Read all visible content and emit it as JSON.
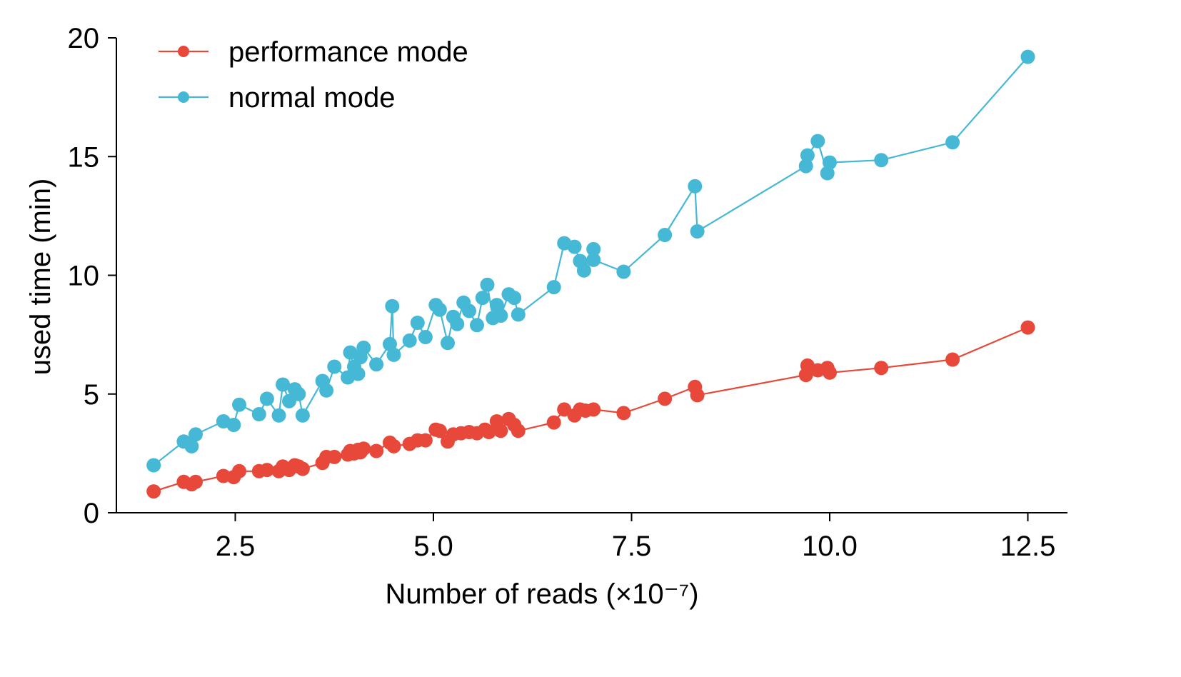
{
  "chart_data": {
    "type": "line",
    "xlabel": "Number of reads (×10⁻⁷)",
    "ylabel": "used time (min)",
    "xlim": [
      1.0,
      13.0
    ],
    "ylim": [
      0,
      20
    ],
    "xticks": [
      "2.5",
      "5.0",
      "7.5",
      "10.0",
      "12.5"
    ],
    "xtick_values": [
      2.5,
      5.0,
      7.5,
      10.0,
      12.5
    ],
    "yticks": [
      "0",
      "5",
      "10",
      "15",
      "20"
    ],
    "ytick_values": [
      0,
      5,
      10,
      15,
      20
    ],
    "grid": false,
    "legend_position": "top-left",
    "series": [
      {
        "name": "performance mode",
        "color": "#e8483a",
        "points": [
          [
            1.47,
            0.9
          ],
          [
            1.85,
            1.3
          ],
          [
            1.95,
            1.2
          ],
          [
            2.0,
            1.3
          ],
          [
            2.35,
            1.55
          ],
          [
            2.48,
            1.5
          ],
          [
            2.55,
            1.75
          ],
          [
            2.8,
            1.75
          ],
          [
            2.9,
            1.8
          ],
          [
            3.05,
            1.75
          ],
          [
            3.1,
            1.95
          ],
          [
            3.18,
            1.8
          ],
          [
            3.25,
            2.0
          ],
          [
            3.3,
            1.95
          ],
          [
            3.35,
            1.85
          ],
          [
            3.6,
            2.1
          ],
          [
            3.65,
            2.35
          ],
          [
            3.75,
            2.35
          ],
          [
            3.92,
            2.45
          ],
          [
            3.95,
            2.6
          ],
          [
            4.0,
            2.5
          ],
          [
            4.05,
            2.65
          ],
          [
            4.08,
            2.55
          ],
          [
            4.12,
            2.7
          ],
          [
            4.28,
            2.6
          ],
          [
            4.45,
            2.95
          ],
          [
            4.5,
            2.8
          ],
          [
            4.7,
            2.9
          ],
          [
            4.8,
            3.05
          ],
          [
            4.9,
            3.05
          ],
          [
            5.03,
            3.5
          ],
          [
            5.08,
            3.45
          ],
          [
            5.18,
            3.0
          ],
          [
            5.25,
            3.3
          ],
          [
            5.35,
            3.35
          ],
          [
            5.45,
            3.4
          ],
          [
            5.55,
            3.35
          ],
          [
            5.65,
            3.5
          ],
          [
            5.7,
            3.4
          ],
          [
            5.8,
            3.85
          ],
          [
            5.85,
            3.45
          ],
          [
            5.95,
            3.95
          ],
          [
            6.02,
            3.7
          ],
          [
            6.07,
            3.45
          ],
          [
            6.52,
            3.8
          ],
          [
            6.65,
            4.35
          ],
          [
            6.78,
            4.1
          ],
          [
            6.85,
            4.35
          ],
          [
            6.92,
            4.3
          ],
          [
            7.02,
            4.35
          ],
          [
            7.4,
            4.2
          ],
          [
            7.92,
            4.8
          ],
          [
            8.3,
            5.3
          ],
          [
            8.33,
            4.95
          ],
          [
            9.7,
            5.8
          ],
          [
            9.72,
            6.2
          ],
          [
            9.85,
            6.0
          ],
          [
            9.97,
            6.1
          ],
          [
            10.0,
            5.9
          ],
          [
            10.65,
            6.1
          ],
          [
            11.55,
            6.45
          ],
          [
            12.5,
            7.8
          ]
        ]
      },
      {
        "name": "normal mode",
        "color": "#45b8d6",
        "points": [
          [
            1.47,
            2.0
          ],
          [
            1.85,
            3.0
          ],
          [
            1.95,
            2.8
          ],
          [
            2.0,
            3.3
          ],
          [
            2.35,
            3.85
          ],
          [
            2.48,
            3.7
          ],
          [
            2.55,
            4.55
          ],
          [
            2.8,
            4.15
          ],
          [
            2.9,
            4.8
          ],
          [
            3.05,
            4.1
          ],
          [
            3.1,
            5.4
          ],
          [
            3.18,
            4.7
          ],
          [
            3.25,
            5.2
          ],
          [
            3.3,
            5.0
          ],
          [
            3.35,
            4.1
          ],
          [
            3.6,
            5.55
          ],
          [
            3.65,
            5.15
          ],
          [
            3.75,
            6.15
          ],
          [
            3.92,
            5.7
          ],
          [
            3.95,
            6.75
          ],
          [
            4.0,
            6.15
          ],
          [
            4.05,
            5.85
          ],
          [
            4.08,
            6.55
          ],
          [
            4.12,
            6.95
          ],
          [
            4.28,
            6.25
          ],
          [
            4.45,
            7.1
          ],
          [
            4.48,
            8.7
          ],
          [
            4.5,
            6.65
          ],
          [
            4.7,
            7.25
          ],
          [
            4.8,
            8.0
          ],
          [
            4.9,
            7.4
          ],
          [
            5.03,
            8.75
          ],
          [
            5.08,
            8.55
          ],
          [
            5.18,
            7.15
          ],
          [
            5.25,
            8.25
          ],
          [
            5.3,
            7.95
          ],
          [
            5.38,
            8.85
          ],
          [
            5.45,
            8.5
          ],
          [
            5.55,
            7.9
          ],
          [
            5.62,
            9.05
          ],
          [
            5.68,
            9.6
          ],
          [
            5.75,
            8.2
          ],
          [
            5.8,
            8.75
          ],
          [
            5.85,
            8.3
          ],
          [
            5.95,
            9.2
          ],
          [
            6.02,
            9.05
          ],
          [
            6.07,
            8.35
          ],
          [
            6.52,
            9.5
          ],
          [
            6.65,
            11.35
          ],
          [
            6.78,
            11.2
          ],
          [
            6.85,
            10.6
          ],
          [
            6.9,
            10.2
          ],
          [
            7.02,
            11.1
          ],
          [
            7.02,
            10.65
          ],
          [
            7.4,
            10.15
          ],
          [
            7.92,
            11.7
          ],
          [
            8.3,
            13.75
          ],
          [
            8.33,
            11.85
          ],
          [
            9.7,
            14.6
          ],
          [
            9.72,
            15.05
          ],
          [
            9.85,
            15.65
          ],
          [
            9.97,
            14.3
          ],
          [
            10.0,
            14.75
          ],
          [
            10.65,
            14.85
          ],
          [
            11.55,
            15.6
          ],
          [
            12.5,
            19.2
          ]
        ]
      }
    ]
  }
}
